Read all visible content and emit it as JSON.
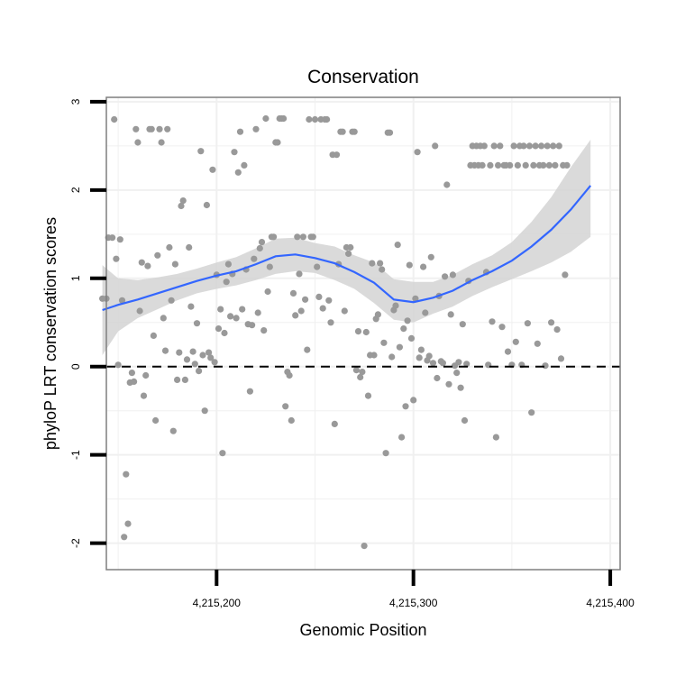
{
  "chart_data": {
    "type": "scatter",
    "title": "Conservation",
    "xlabel": "Genomic Position",
    "ylabel": "phyloP LRT conservation scores",
    "xlim": [
      4215144,
      4215405
    ],
    "ylim": [
      -2.3,
      3.05
    ],
    "x_ticks": [
      {
        "value": 4215200,
        "label": "4,215,200"
      },
      {
        "value": 4215300,
        "label": "4,215,300"
      },
      {
        "value": 4215400,
        "label": "4,215,400"
      }
    ],
    "y_ticks": [
      {
        "value": -2,
        "label": "-2"
      },
      {
        "value": -1,
        "label": "-1"
      },
      {
        "value": 0,
        "label": "0"
      },
      {
        "value": 1,
        "label": "1"
      },
      {
        "value": 2,
        "label": "2"
      },
      {
        "value": 3,
        "label": "3"
      }
    ],
    "reference_line": {
      "y": 0,
      "style": "dashed"
    },
    "colors": {
      "points": "#999999",
      "smooth": "#3366ff",
      "ribbon": "#d3d3d3",
      "grid": "#f0f0f0",
      "frame": "#7f7f7f"
    },
    "points": [
      [
        4215142,
        0.77
      ],
      [
        4215144,
        0.77
      ],
      [
        4215145,
        1.46
      ],
      [
        4215147,
        1.46
      ],
      [
        4215148,
        2.8
      ],
      [
        4215149,
        1.22
      ],
      [
        4215150,
        0.02
      ],
      [
        4215151,
        1.44
      ],
      [
        4215152,
        0.75
      ],
      [
        4215153,
        -1.93
      ],
      [
        4215154,
        -1.22
      ],
      [
        4215155,
        -1.78
      ],
      [
        4215156,
        -0.18
      ],
      [
        4215157,
        -0.07
      ],
      [
        4215158,
        -0.17
      ],
      [
        4215159,
        2.69
      ],
      [
        4215160,
        2.54
      ],
      [
        4215161,
        0.63
      ],
      [
        4215162,
        1.18
      ],
      [
        4215163,
        -0.33
      ],
      [
        4215164,
        -0.1
      ],
      [
        4215165,
        1.14
      ],
      [
        4215166,
        2.69
      ],
      [
        4215167,
        2.69
      ],
      [
        4215168,
        0.35
      ],
      [
        4215169,
        -0.61
      ],
      [
        4215170,
        1.26
      ],
      [
        4215171,
        2.69
      ],
      [
        4215172,
        2.54
      ],
      [
        4215173,
        0.55
      ],
      [
        4215174,
        0.18
      ],
      [
        4215175,
        2.69
      ],
      [
        4215176,
        1.35
      ],
      [
        4215177,
        0.75
      ],
      [
        4215178,
        -0.73
      ],
      [
        4215179,
        1.16
      ],
      [
        4215180,
        -0.15
      ],
      [
        4215181,
        0.16
      ],
      [
        4215182,
        1.82
      ],
      [
        4215183,
        1.88
      ],
      [
        4215184,
        -0.15
      ],
      [
        4215185,
        0.08
      ],
      [
        4215186,
        1.35
      ],
      [
        4215187,
        0.68
      ],
      [
        4215188,
        0.17
      ],
      [
        4215189,
        0.03
      ],
      [
        4215190,
        0.49
      ],
      [
        4215191,
        -0.05
      ],
      [
        4215192,
        2.44
      ],
      [
        4215193,
        0.13
      ],
      [
        4215194,
        -0.5
      ],
      [
        4215195,
        1.83
      ],
      [
        4215196,
        0.16
      ],
      [
        4215197,
        0.1
      ],
      [
        4215198,
        2.23
      ],
      [
        4215199,
        0.05
      ],
      [
        4215200,
        1.04
      ],
      [
        4215201,
        0.43
      ],
      [
        4215202,
        0.65
      ],
      [
        4215203,
        -0.98
      ],
      [
        4215204,
        0.38
      ],
      [
        4215205,
        0.96
      ],
      [
        4215206,
        1.16
      ],
      [
        4215207,
        0.57
      ],
      [
        4215208,
        1.05
      ],
      [
        4215209,
        2.43
      ],
      [
        4215210,
        0.55
      ],
      [
        4215211,
        2.2
      ],
      [
        4215212,
        2.66
      ],
      [
        4215213,
        0.65
      ],
      [
        4215214,
        2.28
      ],
      [
        4215215,
        1.1
      ],
      [
        4215216,
        0.48
      ],
      [
        4215217,
        -0.28
      ],
      [
        4215218,
        0.47
      ],
      [
        4215219,
        1.22
      ],
      [
        4215220,
        2.69
      ],
      [
        4215221,
        0.61
      ],
      [
        4215222,
        1.34
      ],
      [
        4215223,
        1.41
      ],
      [
        4215224,
        0.41
      ],
      [
        4215225,
        2.81
      ],
      [
        4215226,
        0.85
      ],
      [
        4215227,
        1.13
      ],
      [
        4215228,
        1.47
      ],
      [
        4215229,
        1.47
      ],
      [
        4215230,
        2.54
      ],
      [
        4215231,
        2.54
      ],
      [
        4215232,
        2.81
      ],
      [
        4215233,
        2.81
      ],
      [
        4215234,
        2.81
      ],
      [
        4215235,
        -0.45
      ],
      [
        4215236,
        -0.06
      ],
      [
        4215237,
        -0.1
      ],
      [
        4215238,
        -0.61
      ],
      [
        4215239,
        0.83
      ],
      [
        4215240,
        0.58
      ],
      [
        4215241,
        1.47
      ],
      [
        4215242,
        1.05
      ],
      [
        4215243,
        0.63
      ],
      [
        4215244,
        1.47
      ],
      [
        4215245,
        0.76
      ],
      [
        4215246,
        0.19
      ],
      [
        4215247,
        2.8
      ],
      [
        4215248,
        1.47
      ],
      [
        4215249,
        1.47
      ],
      [
        4215250,
        2.8
      ],
      [
        4215251,
        1.13
      ],
      [
        4215252,
        0.79
      ],
      [
        4215253,
        2.8
      ],
      [
        4215254,
        0.66
      ],
      [
        4215255,
        2.8
      ],
      [
        4215256,
        2.8
      ],
      [
        4215257,
        0.75
      ],
      [
        4215258,
        0.5
      ],
      [
        4215259,
        2.4
      ],
      [
        4215260,
        -0.65
      ],
      [
        4215261,
        2.4
      ],
      [
        4215262,
        1.16
      ],
      [
        4215263,
        2.66
      ],
      [
        4215264,
        2.66
      ],
      [
        4215265,
        0.63
      ],
      [
        4215266,
        1.35
      ],
      [
        4215267,
        1.28
      ],
      [
        4215268,
        1.35
      ],
      [
        4215269,
        2.66
      ],
      [
        4215270,
        2.66
      ],
      [
        4215271,
        -0.04
      ],
      [
        4215272,
        0.4
      ],
      [
        4215273,
        -0.12
      ],
      [
        4215274,
        -0.06
      ],
      [
        4215275,
        -2.03
      ],
      [
        4215276,
        0.39
      ],
      [
        4215277,
        -0.33
      ],
      [
        4215278,
        0.13
      ],
      [
        4215279,
        1.17
      ],
      [
        4215280,
        0.13
      ],
      [
        4215281,
        0.54
      ],
      [
        4215282,
        0.59
      ],
      [
        4215283,
        1.17
      ],
      [
        4215284,
        1.1
      ],
      [
        4215285,
        0.27
      ],
      [
        4215286,
        -0.98
      ],
      [
        4215287,
        2.65
      ],
      [
        4215288,
        2.65
      ],
      [
        4215289,
        0.11
      ],
      [
        4215290,
        0.64
      ],
      [
        4215291,
        0.69
      ],
      [
        4215292,
        1.38
      ],
      [
        4215293,
        0.22
      ],
      [
        4215294,
        -0.8
      ],
      [
        4215295,
        0.43
      ],
      [
        4215296,
        -0.45
      ],
      [
        4215297,
        0.52
      ],
      [
        4215298,
        1.15
      ],
      [
        4215299,
        0.32
      ],
      [
        4215300,
        -0.38
      ],
      [
        4215301,
        0.77
      ],
      [
        4215302,
        2.43
      ],
      [
        4215303,
        0.1
      ],
      [
        4215304,
        0.19
      ],
      [
        4215305,
        1.13
      ],
      [
        4215306,
        0.61
      ],
      [
        4215307,
        0.07
      ],
      [
        4215308,
        0.12
      ],
      [
        4215309,
        1.24
      ],
      [
        4215310,
        0.04
      ],
      [
        4215311,
        2.5
      ],
      [
        4215312,
        -0.13
      ],
      [
        4215313,
        0.8
      ],
      [
        4215314,
        0.06
      ],
      [
        4215315,
        0.04
      ],
      [
        4215316,
        1.02
      ],
      [
        4215317,
        2.06
      ],
      [
        4215318,
        -0.2
      ],
      [
        4215319,
        0.59
      ],
      [
        4215320,
        1.04
      ],
      [
        4215321,
        0.01
      ],
      [
        4215322,
        -0.07
      ],
      [
        4215323,
        0.05
      ],
      [
        4215324,
        -0.24
      ],
      [
        4215325,
        0.48
      ],
      [
        4215326,
        -0.61
      ],
      [
        4215327,
        0.03
      ],
      [
        4215328,
        0.97
      ],
      [
        4215329,
        2.28
      ],
      [
        4215330,
        2.5
      ],
      [
        4215331,
        2.28
      ],
      [
        4215332,
        2.5
      ],
      [
        4215333,
        2.28
      ],
      [
        4215334,
        2.5
      ],
      [
        4215335,
        2.28
      ],
      [
        4215336,
        2.5
      ],
      [
        4215337,
        1.07
      ],
      [
        4215338,
        0.02
      ],
      [
        4215339,
        2.28
      ],
      [
        4215340,
        0.51
      ],
      [
        4215341,
        2.5
      ],
      [
        4215342,
        -0.8
      ],
      [
        4215343,
        2.28
      ],
      [
        4215344,
        2.5
      ],
      [
        4215345,
        0.45
      ],
      [
        4215346,
        2.28
      ],
      [
        4215347,
        2.28
      ],
      [
        4215348,
        0.17
      ],
      [
        4215349,
        2.28
      ],
      [
        4215350,
        0.02
      ],
      [
        4215351,
        2.5
      ],
      [
        4215352,
        0.28
      ],
      [
        4215353,
        2.28
      ],
      [
        4215354,
        2.5
      ],
      [
        4215355,
        0.02
      ],
      [
        4215356,
        2.5
      ],
      [
        4215357,
        2.28
      ],
      [
        4215358,
        0.49
      ],
      [
        4215359,
        2.5
      ],
      [
        4215360,
        -0.52
      ],
      [
        4215361,
        2.28
      ],
      [
        4215362,
        2.5
      ],
      [
        4215363,
        0.26
      ],
      [
        4215364,
        2.28
      ],
      [
        4215365,
        2.5
      ],
      [
        4215366,
        2.28
      ],
      [
        4215367,
        0.01
      ],
      [
        4215368,
        2.5
      ],
      [
        4215369,
        2.28
      ],
      [
        4215370,
        0.5
      ],
      [
        4215371,
        2.5
      ],
      [
        4215372,
        2.28
      ],
      [
        4215373,
        0.42
      ],
      [
        4215374,
        2.5
      ],
      [
        4215375,
        0.09
      ],
      [
        4215376,
        2.28
      ],
      [
        4215377,
        1.04
      ],
      [
        4215378,
        2.28
      ]
    ],
    "smooth": {
      "x": [
        4215142,
        4215150,
        4215160,
        4215170,
        4215180,
        4215190,
        4215200,
        4215210,
        4215220,
        4215230,
        4215240,
        4215250,
        4215260,
        4215270,
        4215280,
        4215290,
        4215300,
        4215310,
        4215320,
        4215330,
        4215340,
        4215350,
        4215360,
        4215370,
        4215380,
        4215390
      ],
      "y": [
        0.64,
        0.7,
        0.76,
        0.83,
        0.9,
        0.97,
        1.03,
        1.08,
        1.16,
        1.25,
        1.27,
        1.23,
        1.17,
        1.07,
        0.95,
        0.76,
        0.73,
        0.78,
        0.86,
        0.98,
        1.08,
        1.2,
        1.36,
        1.55,
        1.78,
        2.05
      ],
      "lo": [
        0.13,
        0.4,
        0.55,
        0.65,
        0.75,
        0.83,
        0.88,
        0.92,
        0.98,
        1.05,
        1.08,
        1.06,
        0.98,
        0.88,
        0.72,
        0.53,
        0.5,
        0.6,
        0.68,
        0.8,
        0.9,
        0.99,
        1.08,
        1.18,
        1.3,
        1.47
      ],
      "hi": [
        1.15,
        1.0,
        0.98,
        1.01,
        1.05,
        1.11,
        1.18,
        1.24,
        1.34,
        1.45,
        1.46,
        1.4,
        1.36,
        1.26,
        1.18,
        0.99,
        0.96,
        0.96,
        1.04,
        1.16,
        1.26,
        1.41,
        1.64,
        1.92,
        2.26,
        2.57
      ]
    }
  }
}
